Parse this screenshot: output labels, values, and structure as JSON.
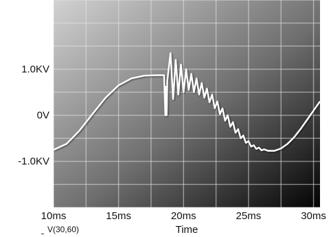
{
  "chart_data": {
    "type": "line",
    "title": "",
    "xlabel": "Time",
    "ylabel": "",
    "trace_label": "V(30,60)",
    "x_unit": "ms",
    "y_unit": "KV",
    "xlim": [
      10,
      30.5
    ],
    "ylim": [
      -2.0,
      2.5
    ],
    "x_ticks": [
      {
        "value": 10,
        "label": "10ms"
      },
      {
        "value": 15,
        "label": "15ms"
      },
      {
        "value": 20,
        "label": "20ms"
      },
      {
        "value": 25,
        "label": "25ms"
      },
      {
        "value": 30,
        "label": "30ms"
      }
    ],
    "y_ticks": [
      {
        "value": 1.0,
        "label": "1.0KV"
      },
      {
        "value": 0.0,
        "label": "0V"
      },
      {
        "value": -1.0,
        "label": "-1.0KV"
      }
    ],
    "grid": true,
    "colors": {
      "trace": "#ffffff",
      "background_light": "#c9c9c9",
      "background_dark": "#050505",
      "grid": "#e6e6e6"
    },
    "series": [
      {
        "points": [
          [
            10.0,
            -0.75
          ],
          [
            11.0,
            -0.62
          ],
          [
            12.0,
            -0.33
          ],
          [
            13.0,
            0.03
          ],
          [
            14.0,
            0.38
          ],
          [
            15.0,
            0.65
          ],
          [
            16.0,
            0.8
          ],
          [
            17.0,
            0.86
          ],
          [
            18.0,
            0.87
          ],
          [
            18.5,
            0.87
          ],
          [
            18.6,
            0.0
          ],
          [
            18.65,
            0.62
          ],
          [
            18.7,
            0.0
          ],
          [
            18.75,
            0.75
          ],
          [
            19.0,
            1.35
          ],
          [
            19.2,
            0.35
          ],
          [
            19.4,
            1.2
          ],
          [
            19.6,
            0.45
          ],
          [
            19.8,
            1.1
          ],
          [
            20.0,
            0.5
          ],
          [
            20.2,
            1.0
          ],
          [
            20.4,
            0.55
          ],
          [
            20.6,
            0.9
          ],
          [
            20.8,
            0.5
          ],
          [
            21.0,
            0.8
          ],
          [
            21.2,
            0.45
          ],
          [
            21.4,
            0.7
          ],
          [
            21.6,
            0.38
          ],
          [
            21.8,
            0.58
          ],
          [
            22.0,
            0.28
          ],
          [
            22.2,
            0.45
          ],
          [
            22.4,
            0.15
          ],
          [
            22.6,
            0.3
          ],
          [
            22.8,
            0.02
          ],
          [
            23.0,
            0.15
          ],
          [
            23.2,
            -0.12
          ],
          [
            23.4,
            -0.0
          ],
          [
            23.6,
            -0.25
          ],
          [
            23.8,
            -0.15
          ],
          [
            24.0,
            -0.38
          ],
          [
            24.2,
            -0.3
          ],
          [
            24.4,
            -0.5
          ],
          [
            24.6,
            -0.44
          ],
          [
            24.8,
            -0.6
          ],
          [
            25.0,
            -0.56
          ],
          [
            25.2,
            -0.68
          ],
          [
            25.4,
            -0.65
          ],
          [
            25.6,
            -0.73
          ],
          [
            25.8,
            -0.7
          ],
          [
            26.0,
            -0.76
          ],
          [
            26.2,
            -0.74
          ],
          [
            26.5,
            -0.77
          ],
          [
            27.0,
            -0.77
          ],
          [
            27.5,
            -0.72
          ],
          [
            28.0,
            -0.62
          ],
          [
            28.5,
            -0.48
          ],
          [
            29.0,
            -0.3
          ],
          [
            29.5,
            -0.1
          ],
          [
            30.0,
            0.1
          ],
          [
            30.5,
            0.3
          ]
        ]
      }
    ]
  }
}
